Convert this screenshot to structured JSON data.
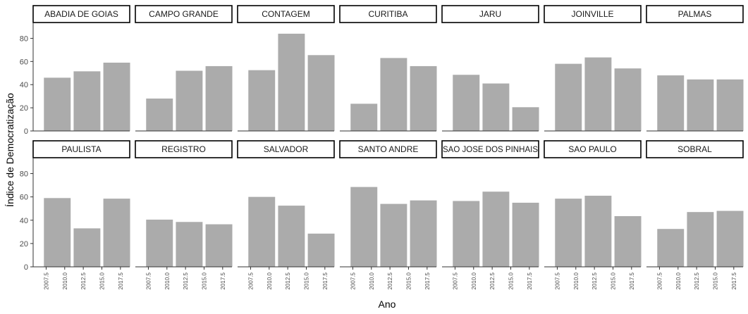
{
  "chart_data": {
    "type": "bar",
    "xlabel": "Ano",
    "ylabel": "Índice de Democratização",
    "ylim": [
      0,
      90
    ],
    "yticks": [
      0,
      20,
      40,
      60,
      80
    ],
    "xlim": [
      2005.75,
      2018.75
    ],
    "xticks": [
      2007.5,
      2010.0,
      2012.5,
      2015.0,
      2017.5
    ],
    "xtick_labels": [
      "2007.5",
      "2010.0",
      "2012.5",
      "2015.0",
      "2017.5"
    ],
    "x": [
      2009,
      2013,
      2017
    ],
    "grid": false,
    "legend": "none",
    "bar_color": "#ababab",
    "facets": [
      {
        "name": "ABADIA DE GOIAS",
        "values": [
          46,
          51.5,
          59
        ]
      },
      {
        "name": "CAMPO GRANDE",
        "values": [
          28,
          52,
          56
        ]
      },
      {
        "name": "CONTAGEM",
        "values": [
          52.5,
          84,
          65.5
        ]
      },
      {
        "name": "CURITIBA",
        "values": [
          23.5,
          63,
          56
        ]
      },
      {
        "name": "JARU",
        "values": [
          48.5,
          41,
          20.5
        ]
      },
      {
        "name": "JOINVILLE",
        "values": [
          58,
          63.5,
          54
        ]
      },
      {
        "name": "PALMAS",
        "values": [
          48,
          44.5,
          44.5
        ]
      },
      {
        "name": "PAULISTA",
        "values": [
          59,
          33,
          58.5
        ]
      },
      {
        "name": "REGISTRO",
        "values": [
          40.5,
          38.5,
          36.5
        ]
      },
      {
        "name": "SALVADOR",
        "values": [
          60,
          52.5,
          28.5
        ]
      },
      {
        "name": "SANTO ANDRE",
        "values": [
          68.5,
          54,
          57
        ]
      },
      {
        "name": "SAO JOSE DOS PINHAIS",
        "values": [
          56.5,
          64.5,
          55
        ]
      },
      {
        "name": "SAO PAULO",
        "values": [
          58.5,
          61,
          43.5
        ]
      },
      {
        "name": "SOBRAL",
        "values": [
          32.5,
          47,
          48
        ]
      }
    ]
  }
}
